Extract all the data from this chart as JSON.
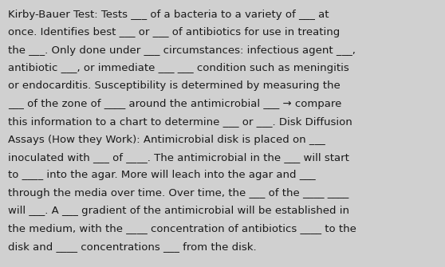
{
  "background_color": "#d0d0d0",
  "text_color": "#1a1a1a",
  "font_size": 9.5,
  "font_family": "DejaVu Sans",
  "text": "Kirby-Bauer Test: Tests ___ of a bacteria to a variety of ___ at once. Identifies best ___ or ___ of antibiotics for use in treating the ___. Only done under ___ circumstances: infectious agent ___, antibiotic ___, or immediate ___ ___ condition such as meningitis or endocarditis. Susceptibility is determined by measuring the ___ of the zone of ____ around the antimicrobial ___ → compare this information to a chart to determine ___ or ___. Disk Diffusion Assays (How they Work): Antimicrobial disk is placed on ___ inoculated with ___ of ____. The antimicrobial in the ___ will start to ____ into the agar. More will leach into the agar and ___ through the media over time. Over time, the ___ of the ____ ____ will ___. A ___ gradient of the antimicrobial will be established in the medium, with the ____ concentration of antibiotics ____ to the disk and ____ concentrations ___ from the disk.",
  "lines": [
    "Kirby-Bauer Test: Tests ___ of a bacteria to a variety of ___ at",
    "once. Identifies best ___ or ___ of antibiotics for use in treating",
    "the ___. Only done under ___ circumstances: infectious agent ___,",
    "antibiotic ___, or immediate ___ ___ condition such as meningitis",
    "or endocarditis. Susceptibility is determined by measuring the",
    "___ of the zone of ____ around the antimicrobial ___ → compare",
    "this information to a chart to determine ___ or ___. Disk Diffusion",
    "Assays (How they Work): Antimicrobial disk is placed on ___",
    "inoculated with ___ of ____. The antimicrobial in the ___ will start",
    "to ____ into the agar. More will leach into the agar and ___",
    "through the media over time. Over time, the ___ of the ____ ____",
    "will ___. A ___ gradient of the antimicrobial will be established in",
    "the medium, with the ____ concentration of antibiotics ____ to the",
    "disk and ____ concentrations ___ from the disk."
  ]
}
